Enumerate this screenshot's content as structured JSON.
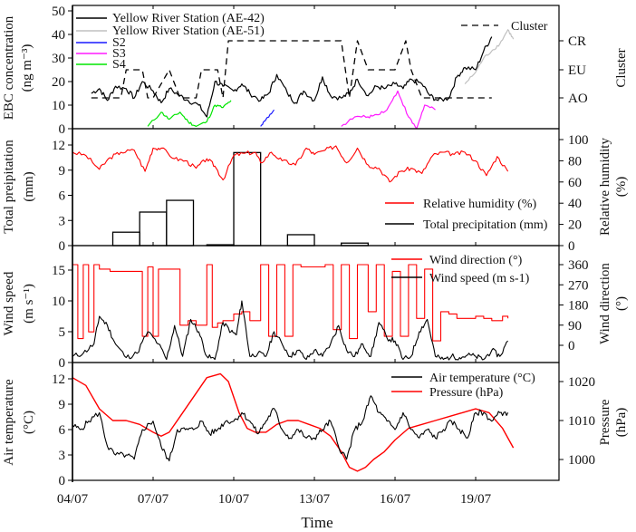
{
  "chart_data": [
    {
      "type": "line",
      "panel": "ebc",
      "ylabel": "EBC concentration (ng m-3)",
      "ylabel_lines": [
        "EBC concentration",
        "(ng m⁻³)"
      ],
      "ylim": [
        0,
        50
      ],
      "yticks": [
        "0",
        "10",
        "20",
        "30",
        "40",
        "50"
      ],
      "y2label": "Cluster",
      "y2ticks": [
        "AO",
        "EU",
        "CR"
      ],
      "legend": [
        {
          "name": "Yellow River Station (AE-42)",
          "color": "#000000",
          "style": "solid"
        },
        {
          "name": "Yellow River Station (AE-51)",
          "color": "#c0c0c0",
          "style": "solid"
        },
        {
          "name": "S2",
          "color": "#1a1aff",
          "style": "solid"
        },
        {
          "name": "S3",
          "color": "#ff1aff",
          "style": "solid"
        },
        {
          "name": "S4",
          "color": "#00e600",
          "style": "solid"
        },
        {
          "name": "Cluster",
          "color": "#000000",
          "style": "dashed"
        }
      ],
      "series": [
        {
          "name": "Yellow River Station (AE-42)",
          "axis": "left",
          "x": [
            4.7,
            5.0,
            5.3,
            5.6,
            6.0,
            6.3,
            6.6,
            7.0,
            7.3,
            7.6,
            8.0,
            8.3,
            8.7,
            9.0,
            9.3,
            9.6,
            10.0,
            10.3,
            10.6,
            11.0,
            11.3,
            11.6,
            12.0,
            12.3,
            12.6,
            13.0,
            13.3,
            13.6,
            14.0,
            14.3,
            14.6,
            15.0,
            15.3,
            15.6,
            16.0,
            16.3,
            16.6,
            17.0,
            17.3,
            17.6,
            18.0,
            18.3,
            18.6,
            19.0,
            19.3,
            19.6
          ],
          "values": [
            15,
            17,
            12,
            18,
            17,
            13,
            20,
            16,
            11,
            17,
            14,
            12,
            10,
            5,
            20,
            18,
            16,
            19,
            15,
            12,
            15,
            23,
            15,
            11,
            16,
            12,
            22,
            14,
            13,
            15,
            21,
            14,
            18,
            17,
            19,
            17,
            21,
            19,
            14,
            12,
            13,
            22,
            26,
            25,
            33,
            39
          ]
        },
        {
          "name": "Yellow River Station (AE-51)",
          "axis": "left",
          "x": [
            18.6,
            19.0,
            19.3,
            19.6,
            19.9,
            20.2,
            20.4
          ],
          "values": [
            19,
            24,
            30,
            33,
            36,
            42,
            38
          ]
        },
        {
          "name": "S2",
          "axis": "left",
          "x": [
            11.0,
            11.2,
            11.5
          ],
          "values": [
            1,
            4,
            8
          ]
        },
        {
          "name": "S3",
          "axis": "left",
          "x": [
            14.0,
            14.5,
            15.0,
            15.3,
            15.7,
            16.1,
            16.5,
            16.8,
            17.1,
            17.5
          ],
          "values": [
            1,
            5,
            5,
            6,
            8,
            16,
            5,
            0,
            10,
            8
          ]
        },
        {
          "name": "S4",
          "axis": "left",
          "x": [
            6.8,
            7.3,
            7.6,
            8.0,
            8.3,
            8.6,
            9.0,
            9.3,
            9.6,
            9.9
          ],
          "values": [
            1,
            7,
            4,
            7,
            3,
            1,
            3,
            10,
            9,
            12
          ]
        },
        {
          "name": "Cluster",
          "axis": "right",
          "x": [
            4.7,
            5.8,
            6.0,
            6.6,
            6.8,
            7.0,
            7.6,
            8.0,
            8.6,
            8.8,
            9.4,
            9.6,
            9.8,
            10.1,
            10.2,
            10.4,
            14.0,
            14.3,
            14.6,
            15.0,
            15.2,
            16.0,
            16.4,
            16.6,
            17.0,
            17.5,
            19.6
          ],
          "values": [
            "AO",
            "AO",
            "EU",
            "EU",
            "AO",
            "AO",
            "EU",
            "AO",
            "AO",
            "EU",
            "EU",
            "AO",
            "CR",
            "CR",
            "CR",
            "CR",
            "CR",
            "AO",
            "CR",
            "EU",
            "EU",
            "EU",
            "CR",
            "EU",
            "AO",
            "AO",
            "AO"
          ]
        }
      ]
    },
    {
      "type": "bar+line",
      "panel": "precipitation",
      "ylabel": "Total precipitation (mm)",
      "ylabel_lines": [
        "Total preipitation",
        "(mm)"
      ],
      "ylim": [
        0,
        13
      ],
      "yticks": [
        "0",
        "3",
        "6",
        "9",
        "12"
      ],
      "y2label": "Relative humidity (%)",
      "y2label_lines": [
        "Relative humidity",
        "(%)"
      ],
      "y2lim": [
        0,
        100
      ],
      "y2ticks": [
        "0",
        "20",
        "40",
        "60",
        "80",
        "100"
      ],
      "legend": [
        {
          "name": "Relative humidity (%)",
          "color": "#ff0000"
        },
        {
          "name": "Total precipitation (mm)",
          "color": "#000000"
        }
      ],
      "series": [
        {
          "name": "Total precipitation (mm)",
          "axis": "left",
          "type": "bar",
          "x_start": [
            5.5,
            6.5,
            7.5,
            9.0,
            10.0,
            12.0,
            14.0
          ],
          "x_end": [
            6.5,
            7.5,
            8.5,
            10.0,
            11.0,
            13.0,
            15.0
          ],
          "values": [
            1.6,
            4.0,
            5.4,
            0.1,
            11.1,
            1.3,
            0.3
          ]
        },
        {
          "name": "Relative humidity (%)",
          "axis": "right",
          "type": "line",
          "x": [
            4.0,
            4.5,
            5.0,
            5.4,
            5.8,
            6.3,
            6.7,
            7.0,
            7.3,
            7.8,
            8.2,
            8.6,
            9.0,
            9.3,
            9.6,
            10.0,
            10.4,
            10.8,
            11.0,
            11.4,
            11.8,
            12.3,
            12.7,
            13.0,
            13.4,
            13.8,
            14.2,
            14.6,
            15.0,
            15.4,
            15.8,
            16.2,
            16.6,
            17.0,
            17.4,
            17.8,
            18.2,
            18.6,
            19.0,
            19.4,
            19.8,
            20.2
          ],
          "values": [
            88,
            85,
            72,
            83,
            88,
            90,
            70,
            92,
            92,
            82,
            80,
            73,
            82,
            75,
            62,
            85,
            87,
            88,
            78,
            88,
            80,
            76,
            92,
            86,
            90,
            94,
            78,
            92,
            76,
            73,
            60,
            70,
            73,
            68,
            85,
            88,
            86,
            88,
            80,
            66,
            84,
            70
          ]
        }
      ]
    },
    {
      "type": "line",
      "panel": "wind",
      "ylabel": "Wind speed (m s-1)",
      "ylabel_lines": [
        "Wind speed",
        "(m s⁻¹)"
      ],
      "ylim": [
        0,
        17
      ],
      "yticks": [
        "0",
        "5",
        "10",
        "15"
      ],
      "y2label": "Wind direction (°)",
      "y2label_lines": [
        "Wind direction",
        "(°)"
      ],
      "y2ticks": [
        "0",
        "90",
        "180",
        "270",
        "360"
      ],
      "legend": [
        {
          "name": "Wind direction (°)",
          "color": "#ff0000"
        },
        {
          "name": "Wind speed (m s-1)",
          "color": "#000000"
        }
      ],
      "series": [
        {
          "name": "Wind speed (m s-1)",
          "axis": "left",
          "x": [
            4.0,
            4.4,
            4.8,
            5.0,
            5.3,
            5.6,
            6.0,
            6.4,
            6.8,
            7.2,
            7.5,
            7.8,
            8.1,
            8.4,
            8.7,
            9.0,
            9.3,
            9.6,
            9.9,
            10.1,
            10.3,
            10.6,
            10.9,
            11.2,
            11.5,
            11.8,
            12.1,
            12.4,
            12.7,
            13.0,
            13.3,
            13.6,
            13.9,
            14.2,
            14.5,
            14.8,
            15.1,
            15.4,
            15.7,
            16.0,
            16.3,
            16.6,
            16.9,
            17.2,
            17.5,
            17.8,
            18.1,
            18.4,
            18.7,
            19.0,
            19.3,
            19.6,
            19.9,
            20.2
          ],
          "values": [
            1,
            1.5,
            3,
            7.5,
            6,
            3,
            0.8,
            1.5,
            5,
            3,
            0.5,
            6,
            1,
            7,
            5,
            1,
            0.5,
            6.5,
            5,
            4.5,
            10,
            1,
            1.5,
            1,
            5,
            3,
            1,
            2,
            0.5,
            2,
            1,
            3,
            6,
            2,
            1,
            3,
            1,
            6.5,
            4,
            3.5,
            0.5,
            1,
            5,
            7,
            1,
            0.5,
            1,
            0.8,
            1.2,
            1,
            0.5,
            2,
            1,
            3.5
          ]
        },
        {
          "name": "Wind direction (°)",
          "axis": "right",
          "x": [
            4.0,
            4.2,
            4.4,
            4.6,
            4.8,
            5.0,
            5.4,
            5.8,
            6.2,
            6.6,
            6.8,
            7.0,
            7.2,
            7.4,
            7.6,
            8.0,
            8.3,
            8.6,
            9.0,
            9.2,
            9.4,
            9.6,
            10.0,
            10.3,
            10.6,
            11.0,
            11.3,
            11.6,
            11.9,
            12.2,
            12.5,
            12.8,
            13.1,
            13.4,
            13.7,
            14.0,
            14.3,
            14.6,
            15.0,
            15.3,
            15.6,
            15.9,
            16.2,
            16.5,
            16.8,
            17.1,
            17.4,
            17.7,
            18.0,
            18.3,
            18.6,
            19.0,
            19.3,
            19.6,
            20.0,
            20.2
          ],
          "values": [
            360,
            30,
            360,
            60,
            360,
            340,
            330,
            330,
            330,
            40,
            350,
            40,
            340,
            340,
            340,
            90,
            110,
            90,
            360,
            80,
            100,
            110,
            140,
            150,
            110,
            360,
            40,
            360,
            40,
            360,
            350,
            350,
            350,
            360,
            70,
            360,
            30,
            360,
            150,
            360,
            40,
            330,
            40,
            360,
            120,
            340,
            20,
            150,
            140,
            120,
            120,
            130,
            120,
            110,
            130,
            120
          ]
        }
      ]
    },
    {
      "type": "line",
      "panel": "temperature",
      "xlabel": "Time",
      "xticks": [
        "04/07",
        "07/07",
        "10/07",
        "13/07",
        "16/07",
        "19/07"
      ],
      "xtick_days": [
        4,
        7,
        10,
        13,
        16,
        19
      ],
      "xlim_days": [
        4.0,
        22.1
      ],
      "ylabel": "Air temperature (°C)",
      "ylabel_lines": [
        "Air temperature",
        "(°C)"
      ],
      "ylim": [
        0,
        13
      ],
      "yticks": [
        "0",
        "3",
        "6",
        "9",
        "12"
      ],
      "y2label": "Pressure (hPa)",
      "y2label_lines": [
        "Pressure",
        "(hPa)"
      ],
      "y2lim": [
        995,
        1023
      ],
      "y2ticks": [
        "1000",
        "1010",
        "1020"
      ],
      "legend": [
        {
          "name": "Air temperature (°C)",
          "color": "#000000"
        },
        {
          "name": "Pressure (hPa)",
          "color": "#ff0000"
        }
      ],
      "series": [
        {
          "name": "Air temperature (°C)",
          "axis": "left",
          "x": [
            4.0,
            4.3,
            4.6,
            5.0,
            5.3,
            5.6,
            6.0,
            6.3,
            6.6,
            7.0,
            7.3,
            7.6,
            7.9,
            8.2,
            8.5,
            8.8,
            9.1,
            9.4,
            9.7,
            10.0,
            10.3,
            10.6,
            10.9,
            11.2,
            11.5,
            11.8,
            12.1,
            12.4,
            12.7,
            13.0,
            13.3,
            13.6,
            13.9,
            14.2,
            14.5,
            14.8,
            15.1,
            15.4,
            15.7,
            16.0,
            16.3,
            16.6,
            16.9,
            17.2,
            17.5,
            17.8,
            18.1,
            18.4,
            18.7,
            19.0,
            19.3,
            19.6,
            19.9,
            20.2
          ],
          "values": [
            6.5,
            6,
            7,
            8,
            4,
            3,
            3,
            2.5,
            6,
            7,
            4,
            2.3,
            6,
            6,
            6,
            7,
            5.5,
            6,
            7,
            7,
            8,
            7,
            5.5,
            7,
            8.5,
            6,
            5,
            6,
            5,
            5,
            6,
            7,
            4,
            2.5,
            6,
            7,
            10,
            8,
            7,
            6,
            8,
            6,
            5,
            6,
            5,
            6,
            7,
            6,
            5,
            8,
            8,
            7,
            8,
            8
          ]
        },
        {
          "name": "Pressure (hPa)",
          "axis": "right",
          "x": [
            4.0,
            4.5,
            5.0,
            5.5,
            6.0,
            6.5,
            7.0,
            7.3,
            7.6,
            8.0,
            8.5,
            9.0,
            9.5,
            9.8,
            10.2,
            10.5,
            10.8,
            11.2,
            11.6,
            12.0,
            12.4,
            12.8,
            13.2,
            13.6,
            14.0,
            14.3,
            14.6,
            14.9,
            15.2,
            15.6,
            16.0,
            16.5,
            17.0,
            17.5,
            18.0,
            18.5,
            19.0,
            19.5,
            20.0,
            20.4
          ],
          "values": [
            1021,
            1019,
            1013,
            1010,
            1010,
            1009,
            1007,
            1006,
            1007,
            1011,
            1016,
            1021,
            1022,
            1020,
            1012,
            1008,
            1007,
            1007,
            1009,
            1010,
            1010,
            1009,
            1008,
            1006,
            1002,
            998,
            997,
            998,
            1000,
            1002,
            1005,
            1008,
            1009,
            1010,
            1011,
            1012,
            1013,
            1012,
            1008,
            1003
          ]
        }
      ]
    }
  ]
}
